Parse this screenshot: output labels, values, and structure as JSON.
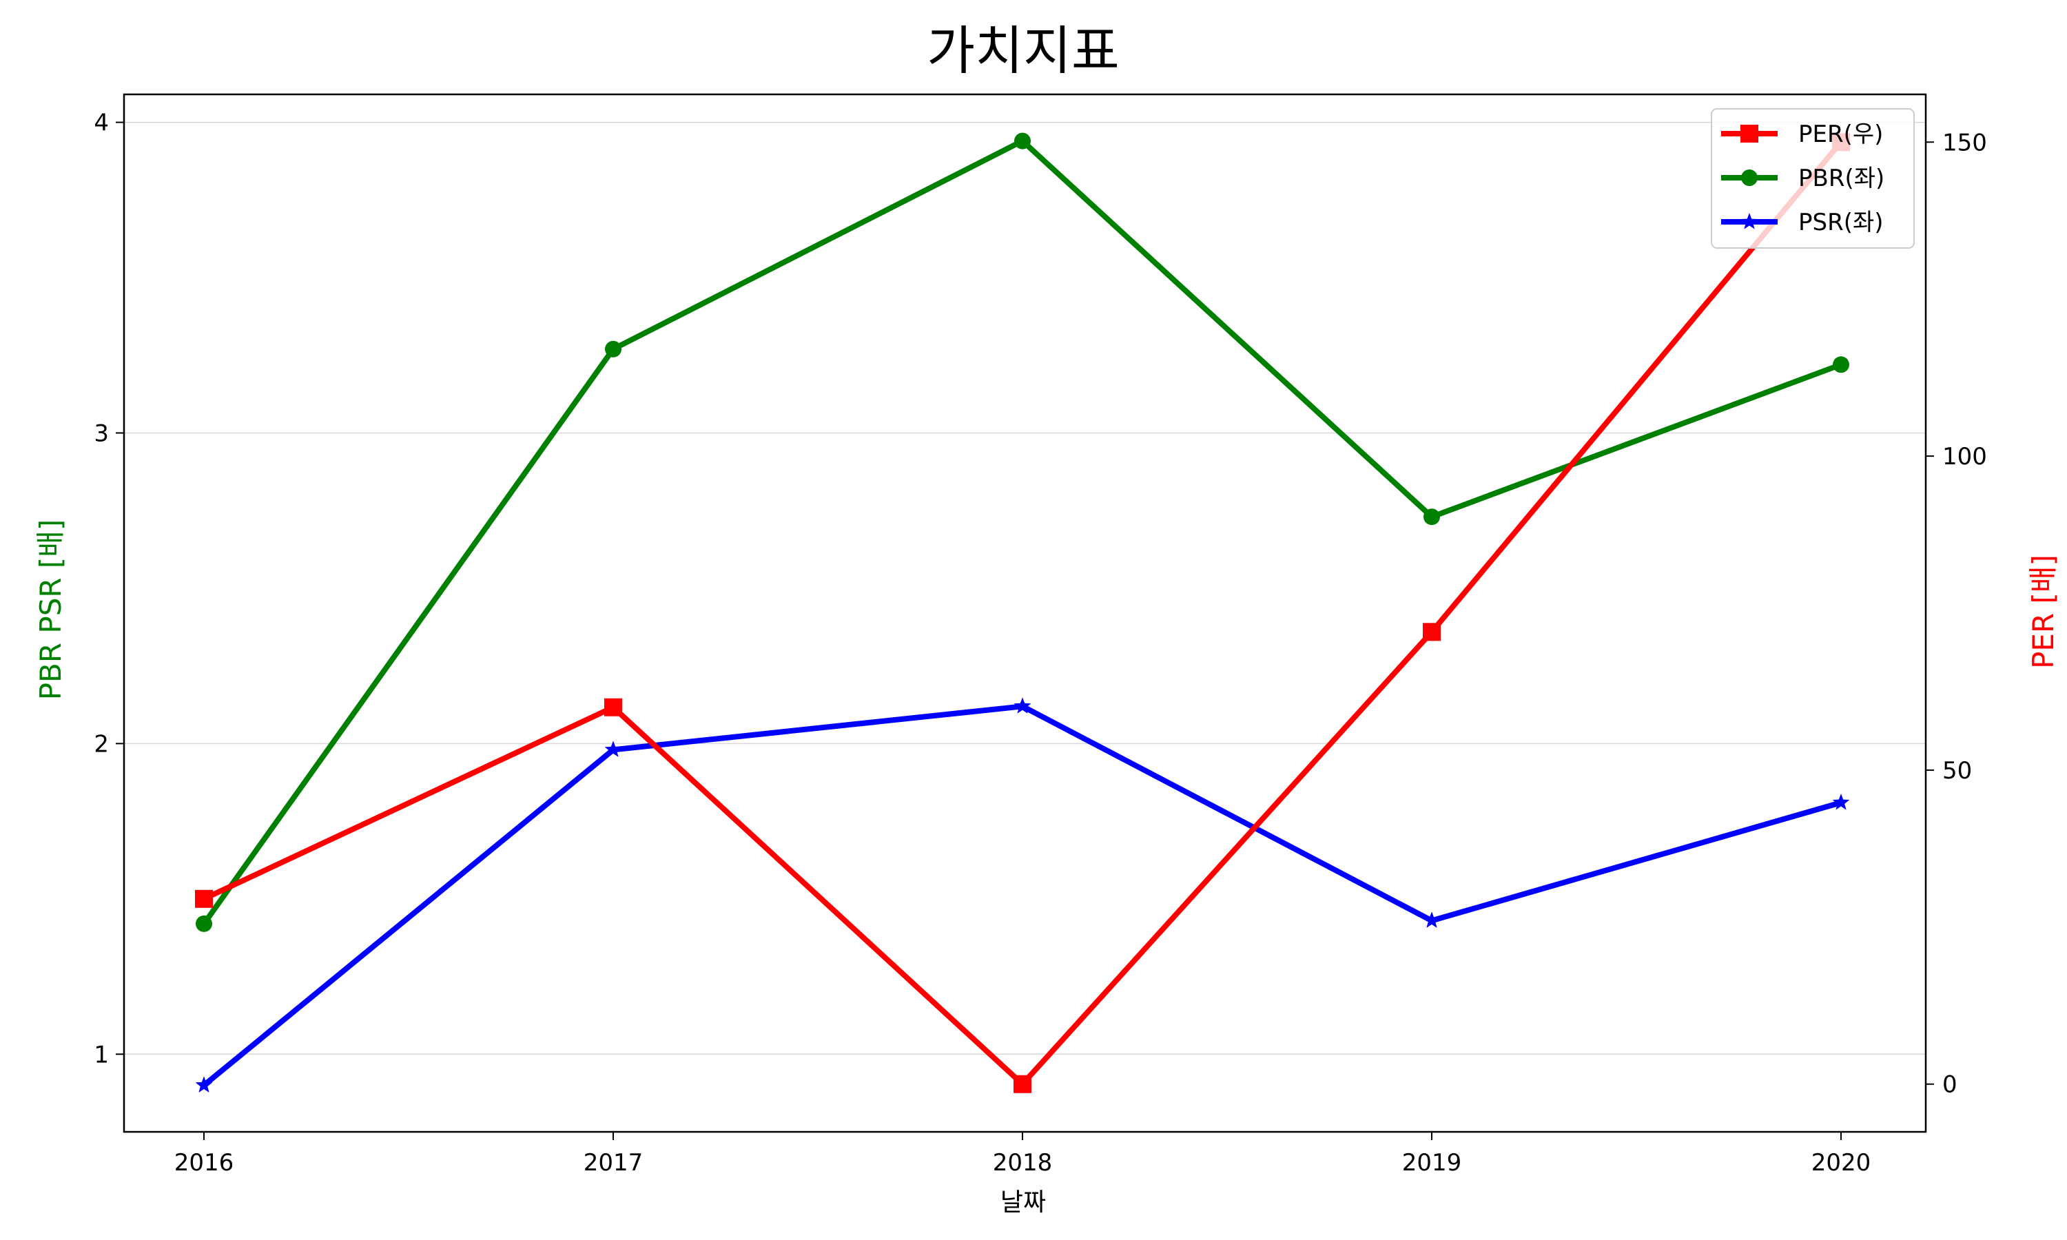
{
  "chart_data": {
    "type": "line",
    "title": "가치지표",
    "xlabel": "날짜",
    "ylabel_left": "PBR PSR [배]",
    "ylabel_right": "PER [배]",
    "ylabel_left_color": "#008000",
    "ylabel_right_color": "#ff0000",
    "categories": [
      "2016",
      "2017",
      "2018",
      "2019",
      "2020"
    ],
    "ylim_left": [
      0.75,
      4.09
    ],
    "yticks_left": [
      "1",
      "2",
      "3",
      "4"
    ],
    "ylim_right": [
      -7.6,
      157.6
    ],
    "yticks_right": [
      "0",
      "50",
      "100",
      "150"
    ],
    "grid": "horizontal (left axis)",
    "legend_position": "top-right",
    "series": [
      {
        "name": "PER(우)",
        "axis": "right",
        "color": "#ff0000",
        "marker": "square",
        "values": [
          29.5,
          60.0,
          0.0,
          72.0,
          150.0
        ]
      },
      {
        "name": "PBR(좌)",
        "axis": "left",
        "color": "#008000",
        "marker": "circle",
        "values": [
          1.42,
          3.27,
          3.94,
          2.73,
          3.22
        ]
      },
      {
        "name": "PSR(좌)",
        "axis": "left",
        "color": "#0000ff",
        "marker": "star",
        "values": [
          0.9,
          1.98,
          2.12,
          1.43,
          1.81
        ]
      }
    ]
  }
}
